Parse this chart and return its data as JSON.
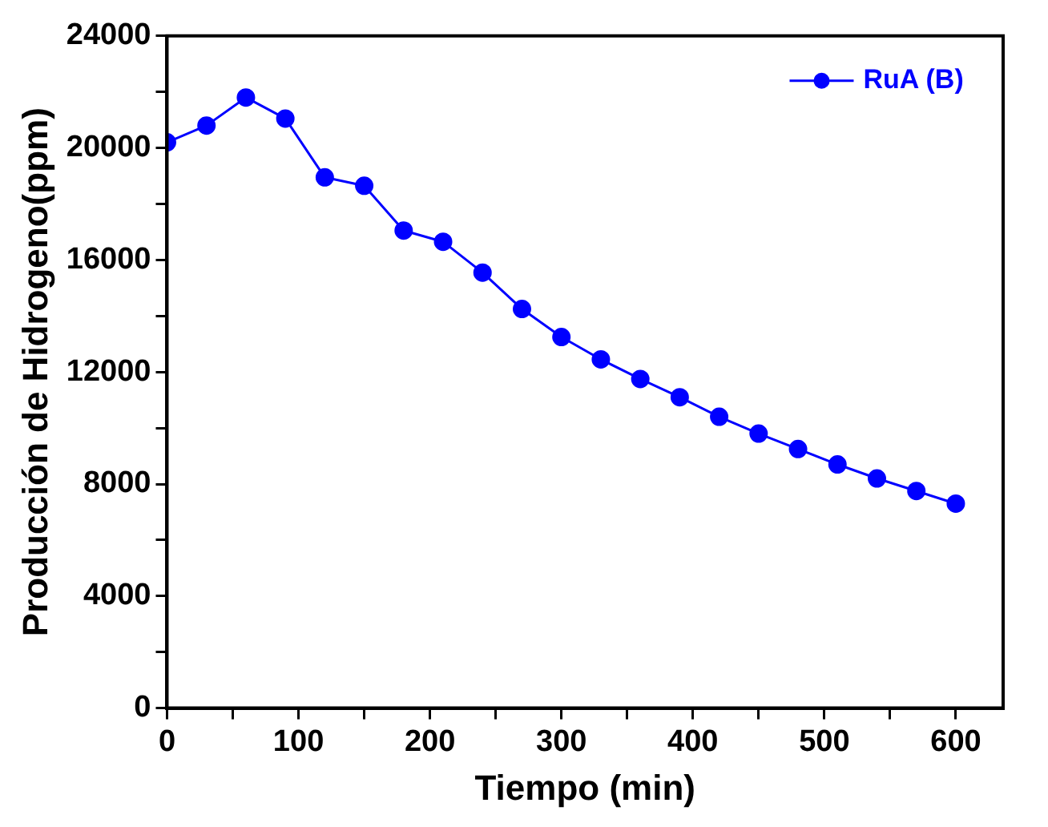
{
  "chart_data": {
    "type": "line",
    "xlabel": "Tiempo (min)",
    "ylabel": "Producción de Hidrogeno(ppm)",
    "x": [
      0,
      30,
      60,
      90,
      120,
      150,
      180,
      210,
      240,
      270,
      300,
      330,
      360,
      390,
      420,
      450,
      480,
      510,
      540,
      570,
      600
    ],
    "series": [
      {
        "name": "RuA (B)",
        "color": "#0000ff",
        "values": [
          20200,
          20800,
          21800,
          21050,
          18950,
          18650,
          17050,
          16650,
          15550,
          14250,
          13250,
          12450,
          11750,
          11100,
          10400,
          9800,
          9250,
          8700,
          8200,
          7750,
          7300
        ]
      }
    ],
    "xlim": [
      0,
      636
    ],
    "ylim": [
      0,
      24000
    ],
    "xticks": [
      0,
      {
        "value": 50,
        "label": null
      },
      100,
      {
        "value": 150,
        "label": null
      },
      200,
      {
        "value": 250,
        "label": null
      },
      300,
      {
        "value": 350,
        "label": null
      },
      400,
      {
        "value": 450,
        "label": null
      },
      500,
      {
        "value": 550,
        "label": null
      },
      600
    ],
    "yticks": [
      0,
      {
        "value": 2000,
        "label": null
      },
      4000,
      {
        "value": 6000,
        "label": null
      },
      8000,
      {
        "value": 10000,
        "label": null
      },
      12000,
      {
        "value": 14000,
        "label": null
      },
      16000,
      {
        "value": 18000,
        "label": null
      },
      20000,
      {
        "value": 22000,
        "label": null
      },
      24000
    ],
    "grid": false,
    "legend": "top right",
    "marker": "circle",
    "line_style": "solid"
  }
}
